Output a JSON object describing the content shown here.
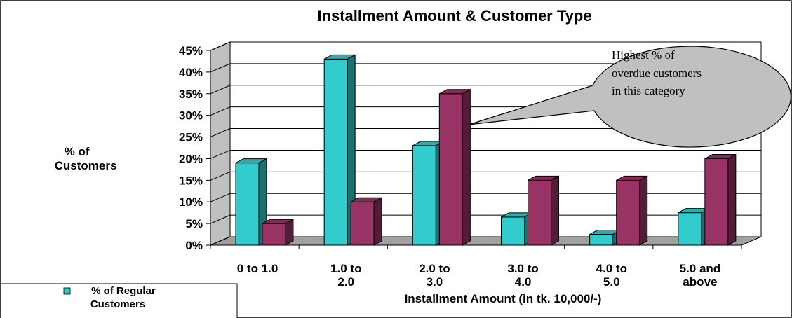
{
  "chart_data": {
    "type": "bar",
    "title": "Installment Amount & Customer Type",
    "xlabel": "Installment Amount (in tk. 10,000/-)",
    "ylabel": [
      "% of",
      "Customers"
    ],
    "ylim": [
      0,
      45
    ],
    "yticks": [
      "0%",
      "5%",
      "10%",
      "15%",
      "20%",
      "25%",
      "30%",
      "35%",
      "40%",
      "45%"
    ],
    "grid": true,
    "legend_position": "bottom-left",
    "categories": [
      [
        "0 to 1.0"
      ],
      [
        "1.0 to",
        "2.0"
      ],
      [
        "2.0 to",
        "3.0"
      ],
      [
        "3.0 to",
        "4.0"
      ],
      [
        "4.0 to",
        "5.0"
      ],
      [
        "5.0 and",
        "above"
      ]
    ],
    "series": [
      {
        "name": [
          "% of Regular",
          "Customers"
        ],
        "color": "#33CCCC",
        "values": [
          19,
          43,
          23,
          6.5,
          2.5,
          7.5
        ]
      },
      {
        "values": [
          5,
          10,
          35,
          15,
          15,
          20
        ],
        "color": "#993366"
      }
    ],
    "annotation": [
      "Highest % of",
      "overdue customers",
      "in this category"
    ]
  }
}
